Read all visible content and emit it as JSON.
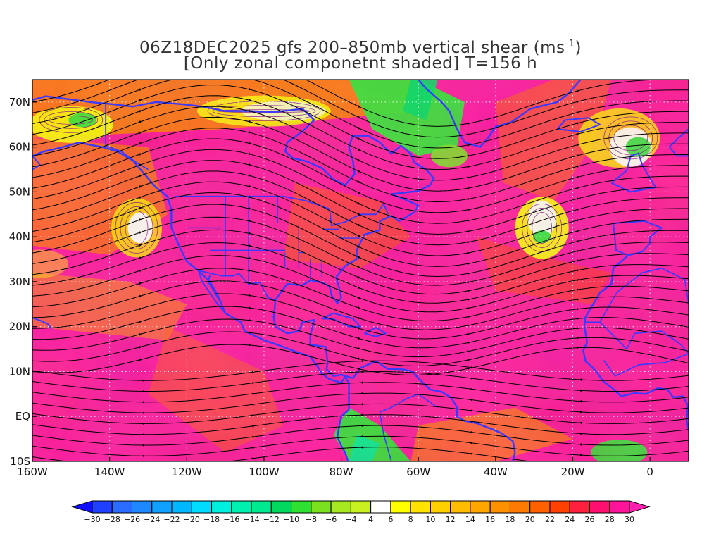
{
  "title": {
    "line1_prefix": "06Z18DEC2025 gfs 200–850mb vertical shear (ms",
    "line1_sup": "-1",
    "line1_suffix": ")",
    "line2": "[Only zonal componetnt shaded] T=156 h"
  },
  "map": {
    "projection": "lat-lon",
    "lon_range": [
      -160,
      10
    ],
    "lat_range": [
      -10,
      75
    ],
    "overlays": [
      "zonal-shear-shading",
      "shear-streamlines",
      "coastlines",
      "country-borders",
      "state-borders",
      "dotted-graticule"
    ],
    "lat_ticks": [
      {
        "lat": 70,
        "label": "70N"
      },
      {
        "lat": 60,
        "label": "60N"
      },
      {
        "lat": 50,
        "label": "50N"
      },
      {
        "lat": 40,
        "label": "40N"
      },
      {
        "lat": 30,
        "label": "30N"
      },
      {
        "lat": 20,
        "label": "20N"
      },
      {
        "lat": 10,
        "label": "10N"
      },
      {
        "lat": 0,
        "label": "EQ"
      },
      {
        "lat": -10,
        "label": "10S"
      }
    ],
    "lon_ticks": [
      {
        "lon": -160,
        "label": "160W"
      },
      {
        "lon": -140,
        "label": "140W"
      },
      {
        "lon": -120,
        "label": "120W"
      },
      {
        "lon": -100,
        "label": "100W"
      },
      {
        "lon": -80,
        "label": "80W"
      },
      {
        "lon": -60,
        "label": "60W"
      },
      {
        "lon": -40,
        "label": "40W"
      },
      {
        "lon": -20,
        "label": "20W"
      },
      {
        "lon": 0,
        "label": "0"
      }
    ],
    "colors": {
      "coast": "#3a3aff",
      "border": "#3a3aff",
      "contour": "#8a1a8a",
      "streamline": "#000000"
    }
  },
  "colorbar": {
    "labels": [
      "-30",
      "-28",
      "-26",
      "-24",
      "-22",
      "-20",
      "-18",
      "-16",
      "-14",
      "-12",
      "-10",
      "-8",
      "-6",
      "-4",
      "4",
      "6",
      "8",
      "10",
      "12",
      "14",
      "16",
      "18",
      "20",
      "22",
      "24",
      "26",
      "28",
      "30"
    ],
    "colors": [
      "#1010ff",
      "#2040ff",
      "#2a6cff",
      "#1e88ff",
      "#10a0ff",
      "#00b8ff",
      "#00dcff",
      "#00f0e0",
      "#00f0b0",
      "#00e890",
      "#00d860",
      "#30e030",
      "#7ae020",
      "#a8e820",
      "#c8f020",
      "#ffffff",
      "#ffff00",
      "#ffe400",
      "#ffd000",
      "#ffbc00",
      "#ffa600",
      "#ff9000",
      "#ff7a00",
      "#ff6000",
      "#ff4000",
      "#ff2040",
      "#ff1070",
      "#ff1499",
      "#ff20b0"
    ]
  }
}
